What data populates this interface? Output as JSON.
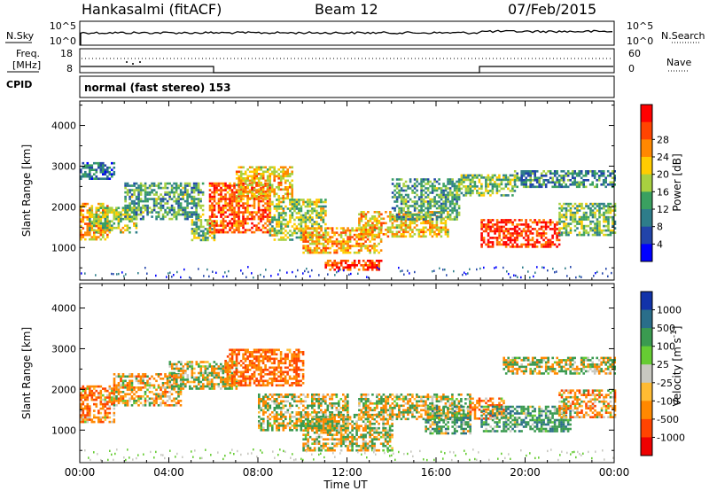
{
  "header": {
    "station": "Hankasalmi (fitACF)",
    "beam": "Beam 12",
    "date": "07/Feb/2015"
  },
  "noise_panel": {
    "left_label": "N.Sky",
    "right_label": "N.Search",
    "yticks_left": [
      "10^5",
      "10^0"
    ],
    "yticks_right": [
      "10^5",
      "10^0"
    ]
  },
  "freq_panel": {
    "left_label_line1": "Freq.",
    "left_label_line2": "[MHz]",
    "yticks_left": [
      "18",
      "8"
    ],
    "right_label": "Nave",
    "yticks_right": [
      "60",
      "0"
    ]
  },
  "cpid_panel": {
    "label": "CPID",
    "text": "normal (fast stereo) 153"
  },
  "chart_data": [
    {
      "type": "heatmap",
      "title": "Power",
      "ylabel": "Slant Range [km]",
      "xlabel": "Time UT",
      "x_ticks": [
        "00:00",
        "04:00",
        "08:00",
        "12:00",
        "16:00",
        "20:00",
        "00:00"
      ],
      "y_ticks": [
        1000,
        2000,
        3000,
        4000
      ],
      "ylim": [
        200,
        4600
      ],
      "colorbar_label": "Power [dB]",
      "colorbar_ticks": [
        4,
        8,
        12,
        16,
        20,
        24,
        28
      ],
      "colorbar_colors": [
        "#0000ff",
        "#2244aa",
        "#2e7d8a",
        "#3aa060",
        "#a8d040",
        "#ffcc00",
        "#ff8800",
        "#ff4400",
        "#ff0000"
      ],
      "bands": [
        {
          "t": [
            0.0,
            1.2
          ],
          "r": [
            1200,
            2100
          ],
          "v": 22
        },
        {
          "t": [
            0.0,
            1.5
          ],
          "r": [
            2700,
            3100
          ],
          "v": 8
        },
        {
          "t": [
            0.4,
            2.5
          ],
          "r": [
            1400,
            2000
          ],
          "v": 16
        },
        {
          "t": [
            2.0,
            5.5
          ],
          "r": [
            1700,
            2600
          ],
          "v": 12
        },
        {
          "t": [
            5.0,
            6.0
          ],
          "r": [
            1200,
            1700
          ],
          "v": 14
        },
        {
          "t": [
            5.8,
            8.5
          ],
          "r": [
            1400,
            2600
          ],
          "v": 26
        },
        {
          "t": [
            7.0,
            9.5
          ],
          "r": [
            2200,
            3000
          ],
          "v": 20
        },
        {
          "t": [
            8.5,
            11.0
          ],
          "r": [
            1200,
            2200
          ],
          "v": 16
        },
        {
          "t": [
            10.0,
            13.5
          ],
          "r": [
            900,
            1500
          ],
          "v": 22
        },
        {
          "t": [
            11.0,
            13.5
          ],
          "r": [
            450,
            700
          ],
          "v": 28
        },
        {
          "t": [
            12.5,
            16.5
          ],
          "r": [
            1300,
            1900
          ],
          "v": 20
        },
        {
          "t": [
            14.0,
            17.0
          ],
          "r": [
            1700,
            2700
          ],
          "v": 12
        },
        {
          "t": [
            17.0,
            19.5
          ],
          "r": [
            2300,
            2800
          ],
          "v": 14
        },
        {
          "t": [
            18.0,
            21.5
          ],
          "r": [
            1000,
            1700
          ],
          "v": 28
        },
        {
          "t": [
            19.5,
            24.0
          ],
          "r": [
            2500,
            2900
          ],
          "v": 10
        },
        {
          "t": [
            21.5,
            24.0
          ],
          "r": [
            1300,
            2100
          ],
          "v": 14
        }
      ]
    },
    {
      "type": "heatmap",
      "title": "Velocity",
      "ylabel": "Slant Range [km]",
      "xlabel": "Time UT",
      "x_ticks": [
        "00:00",
        "04:00",
        "08:00",
        "12:00",
        "16:00",
        "20:00",
        "00:00"
      ],
      "y_ticks": [
        1000,
        2000,
        3000,
        4000
      ],
      "ylim": [
        200,
        4600
      ],
      "colorbar_label": "Velocity [m s^-1]",
      "colorbar_ticks": [
        1000,
        500,
        100,
        25,
        -25,
        -100,
        -500,
        -1000
      ],
      "colorbar_colors": [
        "#1133aa",
        "#2a6e8a",
        "#3a9a50",
        "#66cc33",
        "#c8c8c0",
        "#ffbb33",
        "#ff8800",
        "#ff4400",
        "#ee0000"
      ],
      "bands": [
        {
          "t": [
            0.0,
            1.5
          ],
          "r": [
            1200,
            2100
          ],
          "v": -200
        },
        {
          "t": [
            1.5,
            4.5
          ],
          "r": [
            1600,
            2400
          ],
          "v": -100
        },
        {
          "t": [
            4.0,
            7.0
          ],
          "r": [
            2000,
            2700
          ],
          "v": 0
        },
        {
          "t": [
            6.5,
            10.0
          ],
          "r": [
            2100,
            3000
          ],
          "v": -300
        },
        {
          "t": [
            8.0,
            12.0
          ],
          "r": [
            1000,
            1900
          ],
          "v": 0
        },
        {
          "t": [
            10.0,
            14.0
          ],
          "r": [
            500,
            1400
          ],
          "v": 0
        },
        {
          "t": [
            12.5,
            17.5
          ],
          "r": [
            1300,
            1900
          ],
          "v": 0
        },
        {
          "t": [
            15.5,
            17.5
          ],
          "r": [
            900,
            1600
          ],
          "v": 150
        },
        {
          "t": [
            17.5,
            19.0
          ],
          "r": [
            1300,
            1800
          ],
          "v": -200
        },
        {
          "t": [
            18.0,
            22.0
          ],
          "r": [
            1000,
            1600
          ],
          "v": 200
        },
        {
          "t": [
            19.0,
            24.0
          ],
          "r": [
            2400,
            2800
          ],
          "v": 0
        },
        {
          "t": [
            21.5,
            24.0
          ],
          "r": [
            1300,
            2000
          ],
          "v": -150
        }
      ]
    }
  ]
}
